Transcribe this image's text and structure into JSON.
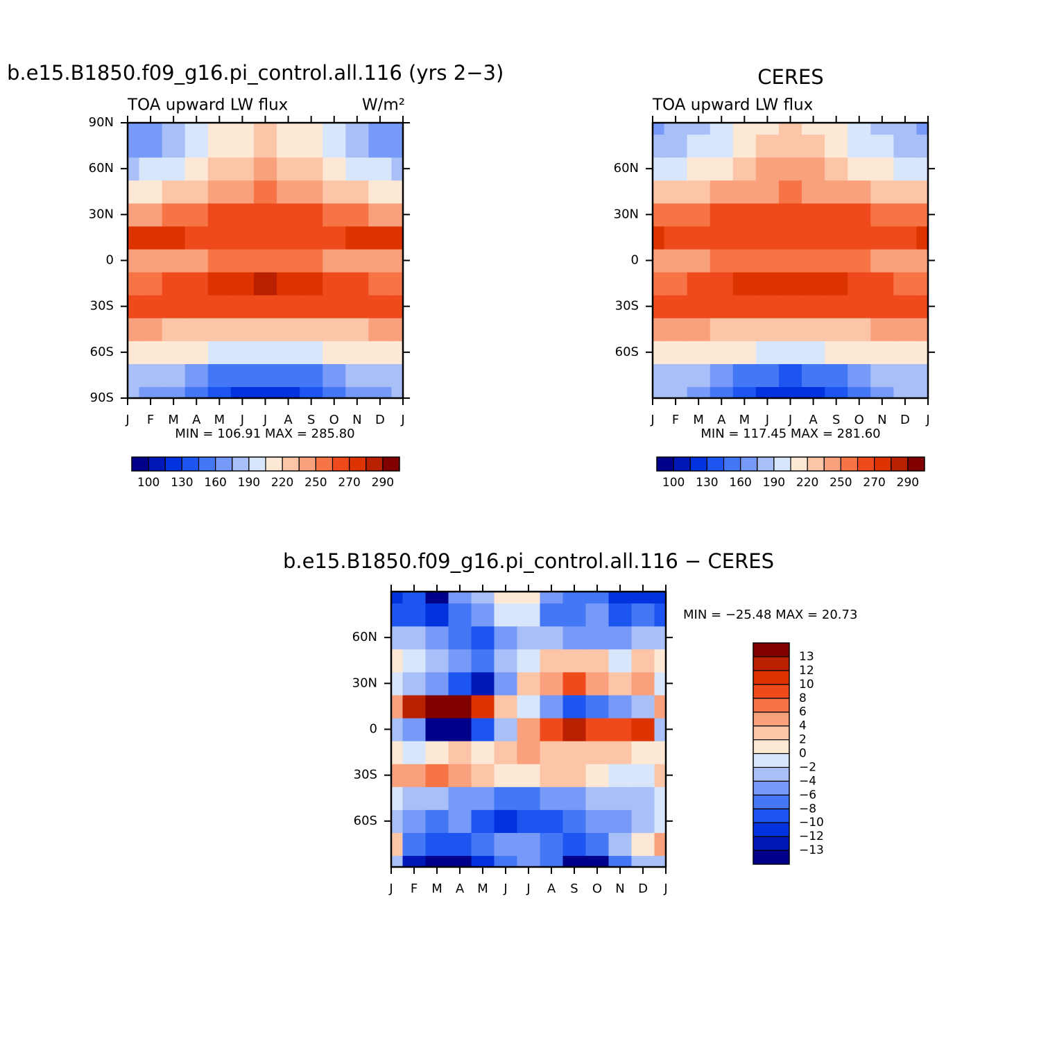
{
  "chart_data": [
    {
      "type": "contour",
      "title": "b.e15.B1850.f09_g16.pi_control.all.116 (yrs 2−3)",
      "subtitle": "TOA upward LW flux",
      "units": "W/m²",
      "stats": "MIN = 106.91  MAX = 285.80",
      "x": [
        0,
        1,
        2,
        3,
        4,
        5,
        6,
        7,
        8,
        9,
        10,
        11,
        12
      ],
      "y": [
        -90,
        -75,
        -60,
        -45,
        -30,
        -15,
        0,
        15,
        30,
        45,
        60,
        75,
        90
      ],
      "z": [
        [
          175,
          172,
          162,
          150,
          137,
          128,
          125,
          128,
          137,
          150,
          162,
          172,
          175
        ],
        [
          185,
          182,
          175,
          165,
          155,
          148,
          145,
          148,
          155,
          165,
          175,
          182,
          185
        ],
        [
          216,
          215,
          212,
          208,
          204,
          201,
          200,
          201,
          204,
          208,
          212,
          215,
          216
        ],
        [
          237,
          236,
          234,
          232,
          230,
          228,
          227,
          228,
          230,
          232,
          234,
          236,
          237
        ],
        [
          262,
          263,
          264,
          265,
          267,
          268,
          268,
          268,
          267,
          265,
          264,
          263,
          262
        ],
        [
          256,
          258,
          262,
          268,
          274,
          278,
          280,
          278,
          274,
          268,
          262,
          258,
          256
        ],
        [
          245,
          245,
          246,
          248,
          250,
          251,
          251,
          251,
          250,
          248,
          246,
          245,
          245
        ],
        [
          272,
          271,
          270,
          268,
          266,
          265,
          264,
          265,
          266,
          268,
          270,
          271,
          272
        ],
        [
          248,
          249,
          253,
          258,
          263,
          267,
          268,
          267,
          263,
          258,
          253,
          249,
          248
        ],
        [
          214,
          216,
          223,
          232,
          241,
          248,
          250,
          248,
          241,
          232,
          223,
          216,
          214
        ],
        [
          187,
          190,
          200,
          212,
          225,
          234,
          237,
          234,
          225,
          212,
          200,
          190,
          187
        ],
        [
          167,
          171,
          181,
          195,
          209,
          219,
          223,
          219,
          209,
          195,
          181,
          171,
          167
        ],
        [
          160,
          164,
          175,
          190,
          205,
          216,
          220,
          216,
          205,
          190,
          175,
          164,
          160
        ]
      ],
      "xlim": [
        0,
        12
      ],
      "xticks": [
        {
          "value": 0,
          "label": "J"
        },
        {
          "value": 1,
          "label": "F"
        },
        {
          "value": 2,
          "label": "M"
        },
        {
          "value": 3,
          "label": "A"
        },
        {
          "value": 4,
          "label": "M"
        },
        {
          "value": 5,
          "label": "J"
        },
        {
          "value": 6,
          "label": "J"
        },
        {
          "value": 7,
          "label": "A"
        },
        {
          "value": 8,
          "label": "S"
        },
        {
          "value": 9,
          "label": "O"
        },
        {
          "value": 10,
          "label": "N"
        },
        {
          "value": 11,
          "label": "D"
        },
        {
          "value": 12,
          "label": "J"
        }
      ],
      "ylim": [
        -90,
        90
      ],
      "yticks": [
        {
          "value": -90,
          "label": "90S"
        },
        {
          "value": -60,
          "label": "60S"
        },
        {
          "value": -30,
          "label": "30S"
        },
        0,
        {
          "value": 30,
          "label": "30N"
        },
        {
          "value": 60,
          "label": "60N"
        },
        {
          "value": 90,
          "label": "90N"
        }
      ],
      "colorbar": {
        "orientation": "horizontal",
        "levels": [
          100,
          115,
          130,
          145,
          160,
          175,
          190,
          205,
          220,
          235,
          250,
          260,
          270,
          280,
          290
        ],
        "colors": [
          "#00008b",
          "#0018b8",
          "#0033dd",
          "#1c55f0",
          "#4477f5",
          "#7799f7",
          "#a8c0f7",
          "#d8e6fb",
          "#fde8d5",
          "#fcc5a8",
          "#f9a07c",
          "#f77446",
          "#ee4a1c",
          "#dd3300",
          "#b82000",
          "#800000"
        ],
        "ticks": [
          100,
          130,
          160,
          190,
          220,
          250,
          270,
          290
        ]
      }
    },
    {
      "type": "contour",
      "title": "CERES",
      "subtitle": "TOA upward LW flux",
      "stats": "MIN = 117.45  MAX = 281.60",
      "x": [
        0,
        1,
        2,
        3,
        4,
        5,
        6,
        7,
        8,
        9,
        10,
        11,
        12
      ],
      "y": [
        -90,
        -75,
        -60,
        -45,
        -30,
        -15,
        0,
        15,
        30,
        45,
        60,
        75,
        90
      ],
      "z": [
        [
          180,
          176,
          165,
          150,
          135,
          124,
          120,
          124,
          135,
          150,
          165,
          176,
          180
        ],
        [
          187,
          184,
          176,
          165,
          154,
          146,
          143,
          146,
          154,
          165,
          176,
          184,
          187
        ],
        [
          218,
          217,
          214,
          210,
          206,
          203,
          202,
          203,
          206,
          210,
          214,
          217,
          218
        ],
        [
          238,
          237,
          235,
          233,
          231,
          229,
          228,
          229,
          231,
          233,
          235,
          237,
          238
        ],
        [
          262,
          263,
          264,
          265,
          266,
          267,
          267,
          267,
          266,
          265,
          264,
          263,
          262
        ],
        [
          255,
          256,
          260,
          265,
          270,
          274,
          275,
          274,
          270,
          265,
          260,
          256,
          255
        ],
        [
          247,
          247,
          248,
          250,
          251,
          252,
          252,
          252,
          251,
          250,
          248,
          247,
          247
        ],
        [
          270,
          269,
          268,
          266,
          264,
          263,
          262,
          263,
          264,
          266,
          268,
          269,
          270
        ],
        [
          252,
          253,
          256,
          260,
          264,
          266,
          267,
          266,
          264,
          260,
          256,
          253,
          252
        ],
        [
          222,
          224,
          230,
          237,
          244,
          249,
          251,
          249,
          244,
          237,
          230,
          224,
          222
        ],
        [
          196,
          198,
          207,
          218,
          228,
          235,
          238,
          235,
          228,
          218,
          207,
          198,
          196
        ],
        [
          178,
          181,
          190,
          202,
          214,
          222,
          225,
          222,
          214,
          202,
          190,
          181,
          178
        ],
        [
          172,
          175,
          185,
          197,
          210,
          219,
          222,
          219,
          210,
          197,
          185,
          175,
          172
        ]
      ],
      "xlim": [
        0,
        12
      ],
      "xticks": [
        {
          "value": 0,
          "label": "J"
        },
        {
          "value": 1,
          "label": "F"
        },
        {
          "value": 2,
          "label": "M"
        },
        {
          "value": 3,
          "label": "A"
        },
        {
          "value": 4,
          "label": "M"
        },
        {
          "value": 5,
          "label": "J"
        },
        {
          "value": 6,
          "label": "J"
        },
        {
          "value": 7,
          "label": "A"
        },
        {
          "value": 8,
          "label": "S"
        },
        {
          "value": 9,
          "label": "O"
        },
        {
          "value": 10,
          "label": "N"
        },
        {
          "value": 11,
          "label": "D"
        },
        {
          "value": 12,
          "label": "J"
        }
      ],
      "ylim": [
        -90,
        90
      ],
      "yticks": [
        {
          "value": -60,
          "label": "60S"
        },
        {
          "value": -30,
          "label": "30S"
        },
        0,
        {
          "value": 30,
          "label": "30N"
        },
        {
          "value": 60,
          "label": "60N"
        }
      ],
      "colorbar": {
        "orientation": "horizontal",
        "levels": [
          100,
          115,
          130,
          145,
          160,
          175,
          190,
          205,
          220,
          235,
          250,
          260,
          270,
          280,
          290
        ],
        "colors": [
          "#00008b",
          "#0018b8",
          "#0033dd",
          "#1c55f0",
          "#4477f5",
          "#7799f7",
          "#a8c0f7",
          "#d8e6fb",
          "#fde8d5",
          "#fcc5a8",
          "#f9a07c",
          "#f77446",
          "#ee4a1c",
          "#dd3300",
          "#b82000",
          "#800000"
        ],
        "ticks": [
          100,
          130,
          160,
          190,
          220,
          250,
          270,
          290
        ]
      }
    },
    {
      "type": "contour",
      "title": "b.e15.B1850.f09_g16.pi_control.all.116 − CERES",
      "stats": "MIN = −25.48  MAX =  20.73",
      "x": [
        0,
        1,
        2,
        3,
        4,
        5,
        6,
        7,
        8,
        9,
        10,
        11,
        12
      ],
      "y": [
        -90,
        -75,
        -60,
        -45,
        -30,
        -15,
        0,
        15,
        30,
        45,
        60,
        75,
        90
      ],
      "z": [
        [
          -3,
          -13,
          -14,
          -14,
          -12,
          -8,
          -6,
          -8,
          -14,
          -14,
          -8,
          -3,
          -3
        ],
        [
          2,
          -8,
          -10,
          -9,
          -7,
          -6,
          -5,
          -8,
          -10,
          -8,
          -4,
          0,
          4
        ],
        [
          -4,
          -6,
          -7,
          -5,
          -9,
          -11,
          -10,
          -9,
          -8,
          -6,
          -5,
          -3,
          -2
        ],
        [
          -2,
          -3,
          -4,
          -5,
          -6,
          -8,
          -7,
          -6,
          -5,
          -4,
          -3,
          -3,
          -2
        ],
        [
          4,
          5,
          7,
          4,
          2,
          0,
          1,
          3,
          3,
          0,
          -2,
          -1,
          2
        ],
        [
          1,
          -1,
          1,
          2,
          1,
          2,
          4,
          3,
          2,
          3,
          2,
          1,
          1
        ],
        [
          -3,
          -6,
          -14,
          -14,
          -10,
          -4,
          4,
          8,
          12,
          8,
          8,
          10,
          -3
        ],
        [
          4,
          12,
          14,
          14,
          10,
          3,
          -2,
          -5,
          -10,
          -8,
          -6,
          -3,
          4
        ],
        [
          -2,
          -3,
          -5,
          -10,
          -13,
          -6,
          2,
          4,
          8,
          5,
          3,
          4,
          -2
        ],
        [
          0,
          -1,
          -3,
          -6,
          -7,
          -4,
          -1,
          2,
          3,
          2,
          -1,
          2,
          0
        ],
        [
          -4,
          -4,
          -5,
          -7,
          -10,
          -6,
          -3,
          -4,
          -5,
          -6,
          -5,
          -3,
          -4
        ],
        [
          -10,
          -9,
          -11,
          -8,
          -6,
          -2,
          -2,
          -7,
          -8,
          -6,
          -9,
          -8,
          -10
        ],
        [
          -12,
          -9,
          -14,
          -6,
          -3,
          0,
          1,
          -6,
          -8,
          -8,
          -12,
          -12,
          -12
        ]
      ],
      "xlim": [
        0,
        12
      ],
      "xticks": [
        {
          "value": 0,
          "label": "J"
        },
        {
          "value": 1,
          "label": "F"
        },
        {
          "value": 2,
          "label": "M"
        },
        {
          "value": 3,
          "label": "A"
        },
        {
          "value": 4,
          "label": "M"
        },
        {
          "value": 5,
          "label": "J"
        },
        {
          "value": 6,
          "label": "J"
        },
        {
          "value": 7,
          "label": "A"
        },
        {
          "value": 8,
          "label": "S"
        },
        {
          "value": 9,
          "label": "O"
        },
        {
          "value": 10,
          "label": "N"
        },
        {
          "value": 11,
          "label": "D"
        },
        {
          "value": 12,
          "label": "J"
        }
      ],
      "ylim": [
        -90,
        90
      ],
      "yticks": [
        {
          "value": -60,
          "label": "60S"
        },
        {
          "value": -30,
          "label": "30S"
        },
        0,
        {
          "value": 30,
          "label": "30N"
        },
        {
          "value": 60,
          "label": "60N"
        }
      ],
      "colorbar": {
        "orientation": "vertical",
        "levels": [
          -13,
          -12,
          -10,
          -8,
          -6,
          -4,
          -2,
          0,
          2,
          4,
          6,
          8,
          10,
          12,
          13
        ],
        "colors": [
          "#00008b",
          "#0018b8",
          "#0033dd",
          "#1c55f0",
          "#4477f5",
          "#7799f7",
          "#a8c0f7",
          "#d8e6fb",
          "#fde8d5",
          "#fcc5a8",
          "#f9a07c",
          "#f77446",
          "#ee4a1c",
          "#dd3300",
          "#b82000",
          "#800000"
        ],
        "ticks": [
          {
            "value": -13,
            "label": "−13"
          },
          {
            "value": -12,
            "label": "−12"
          },
          {
            "value": -10,
            "label": "−10"
          },
          {
            "value": -8,
            "label": "−8"
          },
          {
            "value": -6,
            "label": "−6"
          },
          {
            "value": -4,
            "label": "−4"
          },
          {
            "value": -2,
            "label": "−2"
          },
          0,
          2,
          4,
          6,
          8,
          10,
          12,
          13
        ]
      }
    }
  ]
}
